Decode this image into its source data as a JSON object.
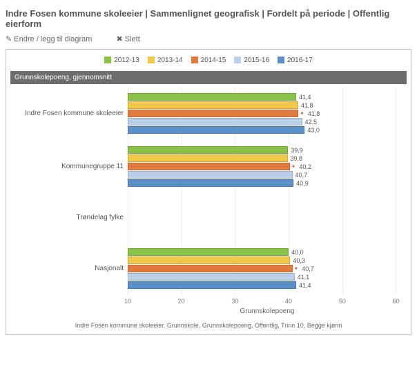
{
  "header": "Indre Fosen kommune skoleeier | Sammenlignet geografisk | Fordelt på periode | Offentlig eierform",
  "toolbar": {
    "edit_label": "Endre / legg til diagram",
    "delete_label": "Slett"
  },
  "chart": {
    "type": "bar-horizontal-grouped",
    "band_title": "Grunnskolepoeng, gjennomsnitt",
    "xlabel": "Grunnskolepoeng",
    "xmin": 10,
    "xmax": 62,
    "xticks": [
      10,
      20,
      30,
      40,
      50,
      60
    ],
    "grid_color": "#eeeeee",
    "background_color": "#ffffff",
    "band_bg": "#6d6d6d",
    "band_fg": "#ffffff",
    "label_fontsize": 10,
    "series": [
      {
        "name": "2012-13",
        "color": "#8ac24a"
      },
      {
        "name": "2013-14",
        "color": "#f2c84b"
      },
      {
        "name": "2014-15",
        "color": "#e07a3f"
      },
      {
        "name": "2015-16",
        "color": "#b9d0e8"
      },
      {
        "name": "2016-17",
        "color": "#5a8fc7"
      }
    ],
    "categories": [
      {
        "label": "Indre Fosen kommune skoleeier",
        "values": [
          41.4,
          41.8,
          41.8,
          42.5,
          43.0
        ],
        "display": [
          "41,4",
          "41,8",
          "41,8",
          "42,5",
          "43,0"
        ],
        "markers": [
          false,
          false,
          true,
          false,
          false
        ]
      },
      {
        "label": "Kommunegruppe 11",
        "values": [
          39.9,
          39.8,
          40.2,
          40.7,
          40.9
        ],
        "display": [
          "39,9",
          "39,8",
          "40,2",
          "40,7",
          "40,9"
        ],
        "markers": [
          false,
          false,
          true,
          false,
          false
        ]
      },
      {
        "label": "Trøndelag fylke",
        "values": [],
        "display": [],
        "markers": []
      },
      {
        "label": "Nasjonalt",
        "values": [
          40.0,
          40.3,
          40.7,
          41.1,
          41.4
        ],
        "display": [
          "40,0",
          "40,3",
          "40,7",
          "41,1",
          "41,4"
        ],
        "markers": [
          false,
          false,
          true,
          false,
          false
        ]
      }
    ]
  },
  "footer": "Indre Fosen kommune skoleeier, Grunnskole, Grunnskolepoeng, Offentlig, Trinn 10, Begge kjønn"
}
